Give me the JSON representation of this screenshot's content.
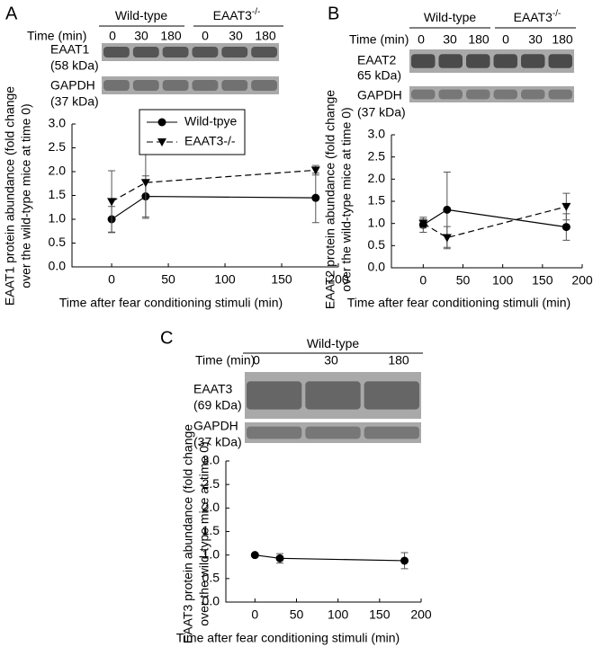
{
  "chart_data": [
    {
      "type": "line",
      "panel": "A",
      "blot": {
        "groups": [
          {
            "label": "Wild-type"
          },
          {
            "label": "EAAT3",
            "sup": "-/-"
          }
        ],
        "time_label": "Time (min)",
        "times": [
          "0",
          "30",
          "180",
          "0",
          "30",
          "180"
        ],
        "rows": [
          {
            "protein": "EAAT1",
            "size": "(58 kDa)"
          },
          {
            "protein": "GAPDH",
            "size": "(37 kDa)"
          }
        ]
      },
      "xlabel": "Time after fear conditioning stimuli (min)",
      "ylabel": [
        "EAAT1 protein abundance (fold change",
        "over the wild-type mice at time 0)"
      ],
      "x": [
        0,
        30,
        180
      ],
      "series": [
        {
          "name": "Wild-tpye",
          "color": "#000000",
          "marker": "circle",
          "dash": "solid",
          "values": [
            1.0,
            1.48,
            1.45
          ],
          "errors": [
            0.27,
            0.43,
            0.52
          ]
        },
        {
          "name": "EAAT3-/-",
          "color": "#000000",
          "marker": "triangle-down",
          "dash": "dashed",
          "values": [
            1.37,
            1.77,
            2.03
          ],
          "errors": [
            0.65,
            0.75,
            0.1
          ]
        }
      ],
      "xlim": [
        -35,
        200
      ],
      "ylim": [
        0,
        3
      ],
      "xticks": [
        0,
        50,
        100,
        150,
        200
      ],
      "yticks": [
        {
          "value": 0,
          "label": "0.0"
        },
        0.5,
        {
          "value": 1,
          "label": "1.0"
        },
        1.5,
        {
          "value": 2,
          "label": "2.0"
        },
        2.5,
        {
          "value": 3,
          "label": "3.0"
        }
      ],
      "legend": "top-left"
    },
    {
      "type": "line",
      "panel": "B",
      "blot": {
        "groups": [
          {
            "label": "Wild-type"
          },
          {
            "label": "EAAT3",
            "sup": "-/-"
          }
        ],
        "time_label": "Time (min)",
        "times": [
          "0",
          "30",
          "180",
          "0",
          "30",
          "180"
        ],
        "rows": [
          {
            "protein": "EAAT2",
            "size": "65 kDa)"
          },
          {
            "protein": "GAPDH",
            "size": "(37 kDa)"
          }
        ]
      },
      "xlabel": "Time after fear conditioning stimuli (min)",
      "ylabel": [
        "EAAT2 protein abundance (fold change",
        "over the wild-type mice at time 0)"
      ],
      "x": [
        0,
        30,
        180
      ],
      "series": [
        {
          "name": "Wild-tpye",
          "color": "#000000",
          "marker": "circle",
          "dash": "solid",
          "values": [
            0.97,
            1.31,
            0.92
          ],
          "errors": [
            0.17,
            0.85,
            0.3
          ]
        },
        {
          "name": "EAAT3-/-",
          "color": "#000000",
          "marker": "triangle-down",
          "dash": "dashed",
          "values": [
            1.0,
            0.68,
            1.38
          ],
          "errors": [
            0.1,
            0.25,
            0.3
          ]
        }
      ],
      "xlim": [
        -40,
        200
      ],
      "ylim": [
        0,
        3
      ],
      "xticks": [
        0,
        50,
        100,
        150,
        200
      ],
      "yticks": [
        {
          "value": 0,
          "label": "0.0"
        },
        0.5,
        {
          "value": 1,
          "label": "1.0"
        },
        1.5,
        {
          "value": 2,
          "label": "2.0"
        },
        2.5,
        {
          "value": 3,
          "label": "3.0"
        }
      ]
    },
    {
      "type": "line",
      "panel": "C",
      "blot": {
        "groups": [
          {
            "label": "Wild-type"
          }
        ],
        "time_label": "Time (min)",
        "times": [
          "0",
          "30",
          "180"
        ],
        "rows": [
          {
            "protein": "EAAT3",
            "size": "(69 kDa)"
          },
          {
            "protein": "GAPDH",
            "size": "(37 kDa)"
          }
        ]
      },
      "xlabel": "Time after fear conditioning stimuli (min)",
      "ylabel": [
        "EAAT3 protein abundance (fold change",
        "over the wild-type mice at time 0)"
      ],
      "x": [
        0,
        30,
        180
      ],
      "series": [
        {
          "name": "Wild-type",
          "color": "#000000",
          "marker": "circle",
          "dash": "solid",
          "values": [
            1.0,
            0.93,
            0.88
          ],
          "errors": [
            0.03,
            0.1,
            0.17
          ]
        }
      ],
      "xlim": [
        -35,
        200
      ],
      "ylim": [
        0,
        3
      ],
      "xticks": [
        0,
        50,
        100,
        150,
        200
      ],
      "yticks": [
        {
          "value": 0,
          "label": "0.0"
        },
        0.5,
        {
          "value": 1,
          "label": "1.0"
        },
        1.5,
        {
          "value": 2,
          "label": "2.0"
        },
        2.5,
        {
          "value": 3,
          "label": "3.0"
        }
      ]
    }
  ]
}
